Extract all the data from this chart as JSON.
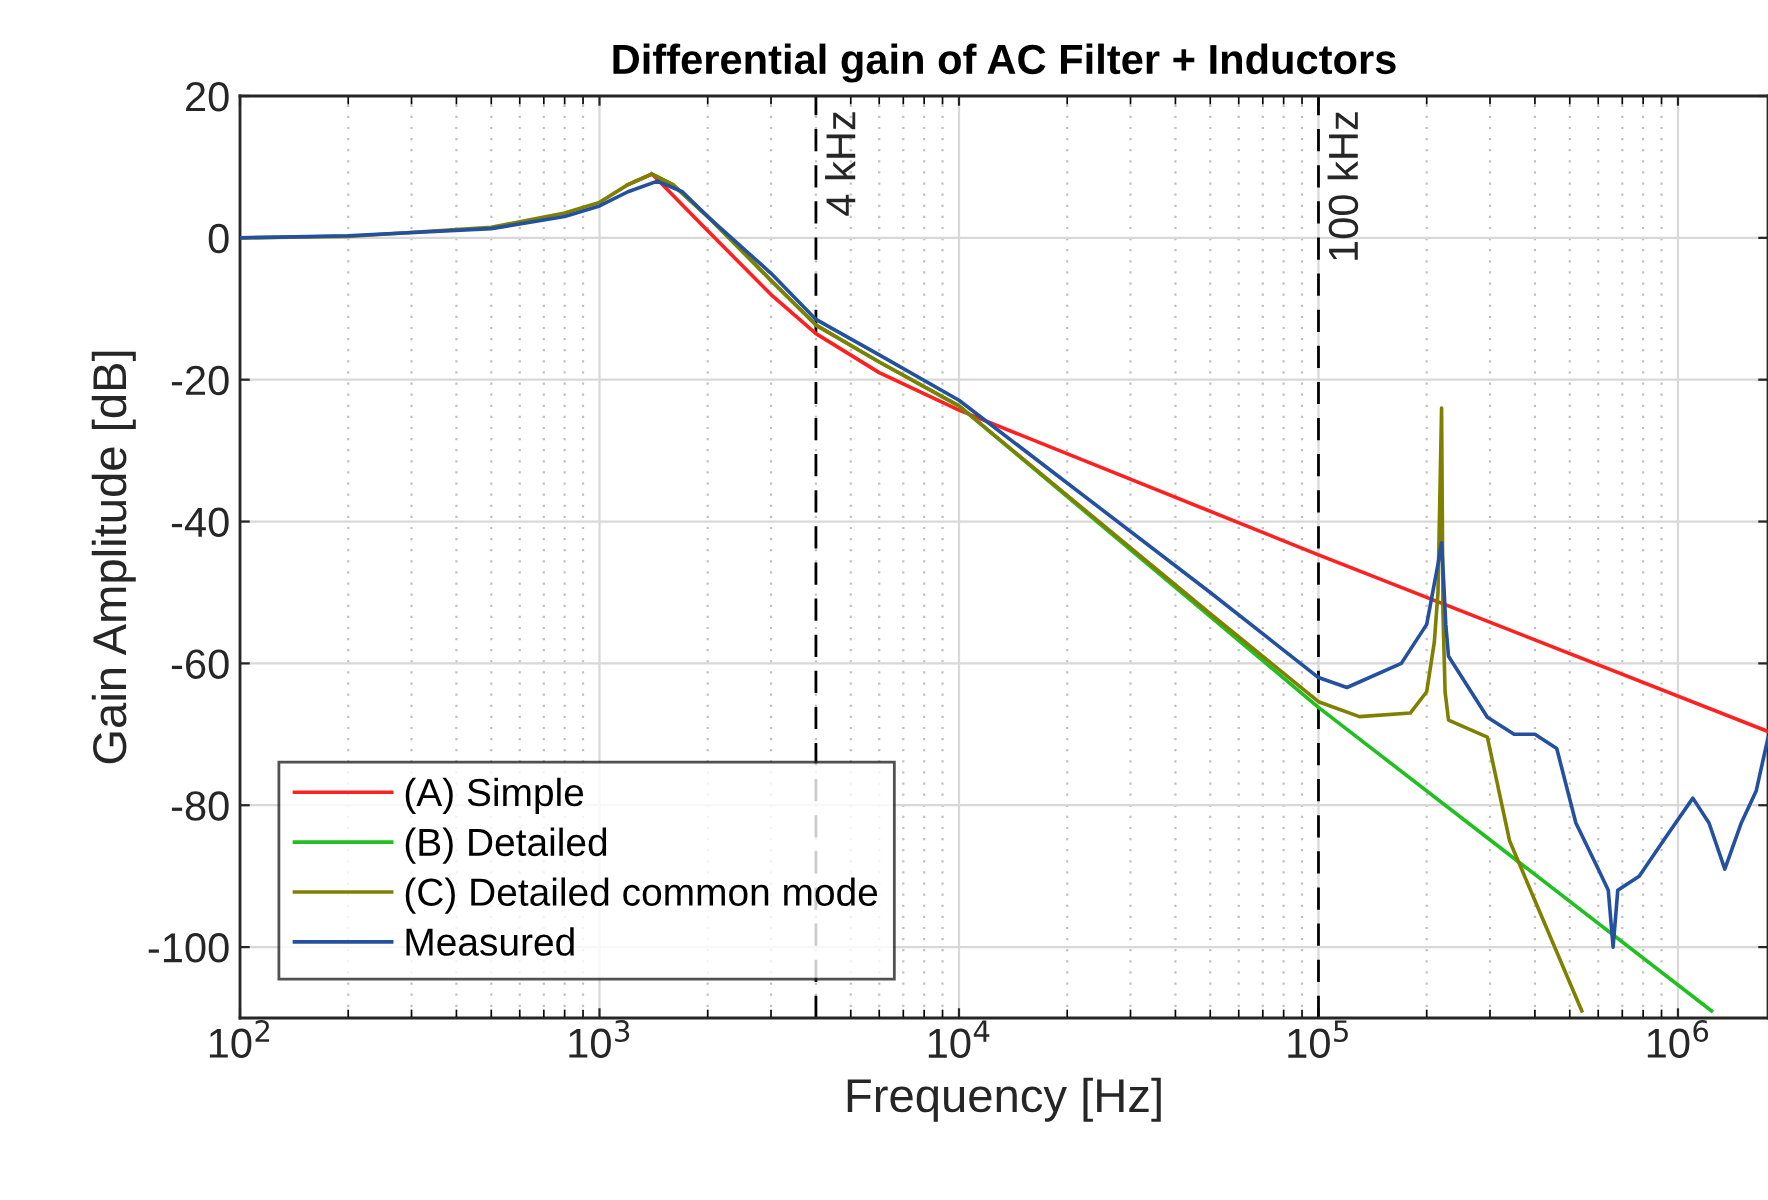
{
  "chart_data": {
    "type": "line",
    "title": "Differential gain of AC Filter + Inductors",
    "xlabel": "Frequency [Hz]",
    "ylabel": "Gain Amplitude [dB]",
    "log": "x",
    "xlim": [
      100,
      1780000
    ],
    "ylim": [
      -110,
      20
    ],
    "xticks": [
      {
        "value": 100,
        "label": "10$^{2}$"
      },
      {
        "value": 1000,
        "label": "10$^{3}$"
      },
      {
        "value": 10000,
        "label": "10$^{4}$"
      },
      {
        "value": 100000,
        "label": "10$^{5}$"
      },
      {
        "value": 1000000,
        "label": "10$^{6}$"
      }
    ],
    "yticks": [
      -100,
      -80,
      -60,
      -40,
      -20,
      0,
      20
    ],
    "grid": true,
    "legend": "bottom left",
    "line_style": "solid",
    "marker": "none",
    "ref_lines": [
      {
        "axis": "x",
        "value": 4000,
        "label": "4 kHz",
        "color": "#000000",
        "line_style": "dashed"
      },
      {
        "axis": "x",
        "value": 100000,
        "label": "100 kHz",
        "color": "#000000",
        "line_style": "dashed"
      }
    ],
    "series": [
      {
        "name": "(A) Simple",
        "color": "#ff2020",
        "x": [
          1200,
          1400,
          1600,
          2000,
          3000,
          4000,
          6000,
          10000,
          100000,
          1780000
        ],
        "values": [
          7.5,
          9,
          6,
          1,
          -8,
          -13.5,
          -19,
          -24.3,
          -44.7,
          -69.6
        ]
      },
      {
        "name": "(B) Detailed",
        "color": "#20c020",
        "x": [
          1400,
          1600,
          2000,
          3000,
          4000,
          6000,
          10000,
          100000,
          1240000
        ],
        "values": [
          9,
          7.5,
          3,
          -6,
          -12.3,
          -17.5,
          -23.7,
          -66.2,
          -109
        ]
      },
      {
        "name": "(C) Detailed common mode",
        "color": "#808000",
        "x": [
          100,
          200,
          500,
          800,
          1000,
          1200,
          1400,
          1600,
          2000,
          3000,
          4000,
          6000,
          10000,
          50000,
          100000,
          130000,
          180000,
          200000,
          210000,
          215000,
          220000,
          222000,
          225000,
          230000,
          295000,
          340000,
          540000
        ],
        "values": [
          0,
          0.2,
          1.5,
          3.5,
          5,
          7.5,
          9,
          7.5,
          3,
          -6,
          -12.3,
          -17.5,
          -23.7,
          -53,
          -65.4,
          -67.5,
          -67,
          -64,
          -57,
          -50,
          -24,
          -53,
          -64,
          -68,
          -70.4,
          -85,
          -109
        ]
      },
      {
        "name": "Measured",
        "color": "#2450a0",
        "x": [
          100,
          200,
          500,
          800,
          1000,
          1200,
          1450,
          1700,
          2000,
          3000,
          4000,
          6000,
          10000,
          50000,
          100000,
          120000,
          170000,
          200000,
          215000,
          220000,
          223000,
          226000,
          230000,
          295000,
          350000,
          400000,
          460000,
          520000,
          600000,
          640000,
          660000,
          680000,
          780000,
          940000,
          1100000,
          1220000,
          1350000,
          1500000,
          1650000,
          1780000
        ],
        "values": [
          0,
          0.3,
          1.3,
          3,
          4.5,
          6.5,
          8,
          6.5,
          3,
          -5,
          -11.5,
          -16.5,
          -22.9,
          -50,
          -62,
          -63.4,
          -60,
          -54.5,
          -46,
          -43,
          -48.5,
          -54.5,
          -59,
          -67.6,
          -70,
          -70,
          -72,
          -82.5,
          -89,
          -92,
          -100,
          -92,
          -90,
          -84,
          -79,
          -82.5,
          -89,
          -82.5,
          -78,
          -70.5
        ]
      }
    ]
  }
}
